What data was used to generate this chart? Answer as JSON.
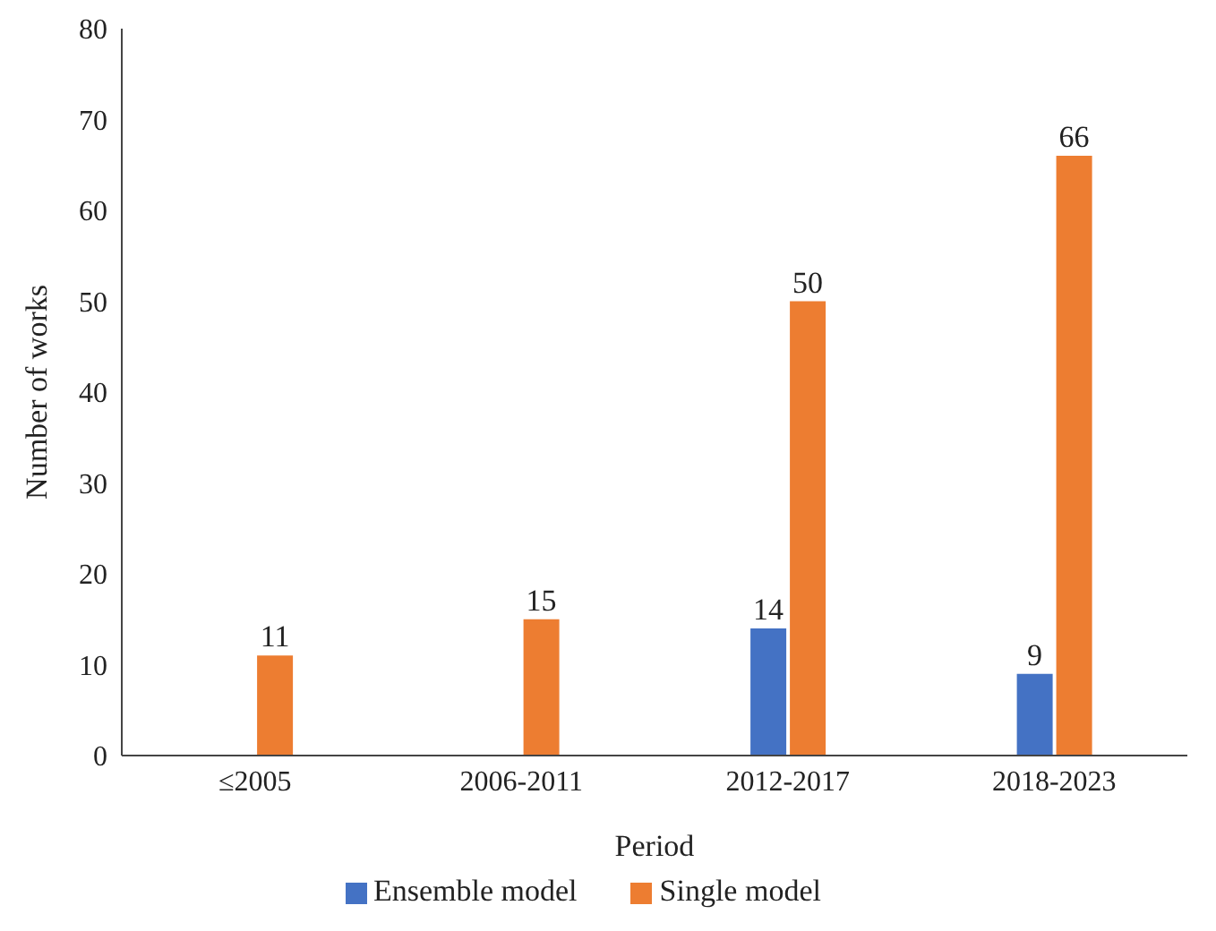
{
  "chart_data": {
    "type": "bar",
    "xlabel": "Period",
    "ylabel": "Number of works",
    "categories": [
      "≤2005",
      "2006-2011",
      "2012-2017",
      "2018-2023"
    ],
    "series": [
      {
        "name": "Ensemble model",
        "color": "#4472c4",
        "values": [
          null,
          null,
          14,
          9
        ]
      },
      {
        "name": "Single model",
        "color": "#ed7d31",
        "values": [
          11,
          15,
          50,
          66
        ]
      }
    ],
    "ylim": [
      0,
      80
    ],
    "yticks": [
      0,
      10,
      20,
      30,
      40,
      50,
      60,
      70,
      80
    ],
    "grid": false,
    "legend": "bottom",
    "data_labels": true
  }
}
